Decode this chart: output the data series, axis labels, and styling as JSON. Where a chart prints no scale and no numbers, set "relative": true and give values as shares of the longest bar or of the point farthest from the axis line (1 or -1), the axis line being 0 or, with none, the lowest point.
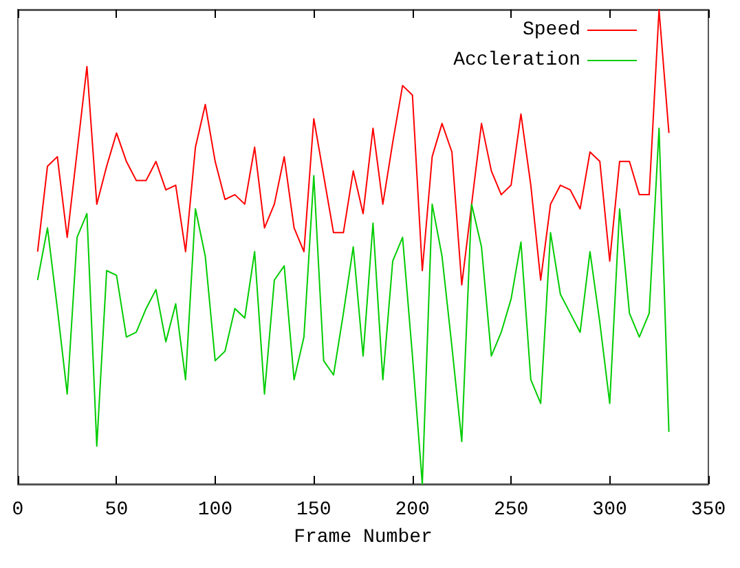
{
  "chart_data": {
    "type": "line",
    "xlabel": "Frame Number",
    "relative": true,
    "xlim": [
      0,
      350
    ],
    "xticks": [
      0,
      50,
      100,
      150,
      200,
      250,
      300,
      350
    ],
    "tick_labels": "x",
    "grid": false,
    "legend": "top right",
    "marker": "none",
    "line_style": "solid",
    "x": [
      10,
      15,
      20,
      25,
      30,
      35,
      40,
      45,
      50,
      55,
      60,
      65,
      70,
      75,
      80,
      85,
      90,
      95,
      100,
      105,
      110,
      115,
      120,
      125,
      130,
      135,
      140,
      145,
      150,
      155,
      160,
      165,
      170,
      175,
      180,
      185,
      190,
      195,
      200,
      205,
      210,
      215,
      220,
      225,
      230,
      235,
      240,
      245,
      250,
      255,
      260,
      265,
      270,
      275,
      280,
      285,
      290,
      295,
      300,
      305,
      310,
      315,
      320,
      325,
      330
    ],
    "series": [
      {
        "name": "Speed",
        "color": "#ff0000",
        "values": [
          0.49,
          0.67,
          0.69,
          0.52,
          0.7,
          0.88,
          0.59,
          0.67,
          0.74,
          0.68,
          0.64,
          0.64,
          0.68,
          0.62,
          0.63,
          0.49,
          0.71,
          0.8,
          0.68,
          0.6,
          0.61,
          0.59,
          0.71,
          0.54,
          0.59,
          0.69,
          0.54,
          0.49,
          0.77,
          0.65,
          0.53,
          0.53,
          0.66,
          0.57,
          0.75,
          0.59,
          0.72,
          0.84,
          0.82,
          0.45,
          0.69,
          0.76,
          0.7,
          0.42,
          0.59,
          0.76,
          0.66,
          0.61,
          0.63,
          0.78,
          0.63,
          0.43,
          0.59,
          0.63,
          0.62,
          0.58,
          0.7,
          0.68,
          0.47,
          0.68,
          0.68,
          0.61,
          0.61,
          1,
          0.74
        ]
      },
      {
        "name": "Accleration",
        "color": "#00cc00",
        "values": [
          0.43,
          0.54,
          0.37,
          0.19,
          0.52,
          0.57,
          0.08,
          0.45,
          0.44,
          0.31,
          0.32,
          0.37,
          0.41,
          0.3,
          0.38,
          0.22,
          0.58,
          0.48,
          0.26,
          0.28,
          0.37,
          0.35,
          0.49,
          0.19,
          0.43,
          0.46,
          0.22,
          0.31,
          0.65,
          0.26,
          0.23,
          0.36,
          0.5,
          0.27,
          0.55,
          0.22,
          0.47,
          0.52,
          0.27,
          0,
          0.59,
          0.48,
          0.29,
          0.09,
          0.59,
          0.5,
          0.27,
          0.32,
          0.39,
          0.51,
          0.22,
          0.17,
          0.53,
          0.4,
          0.36,
          0.32,
          0.49,
          0.34,
          0.17,
          0.58,
          0.36,
          0.31,
          0.36,
          0.75,
          0.11
        ]
      }
    ]
  }
}
